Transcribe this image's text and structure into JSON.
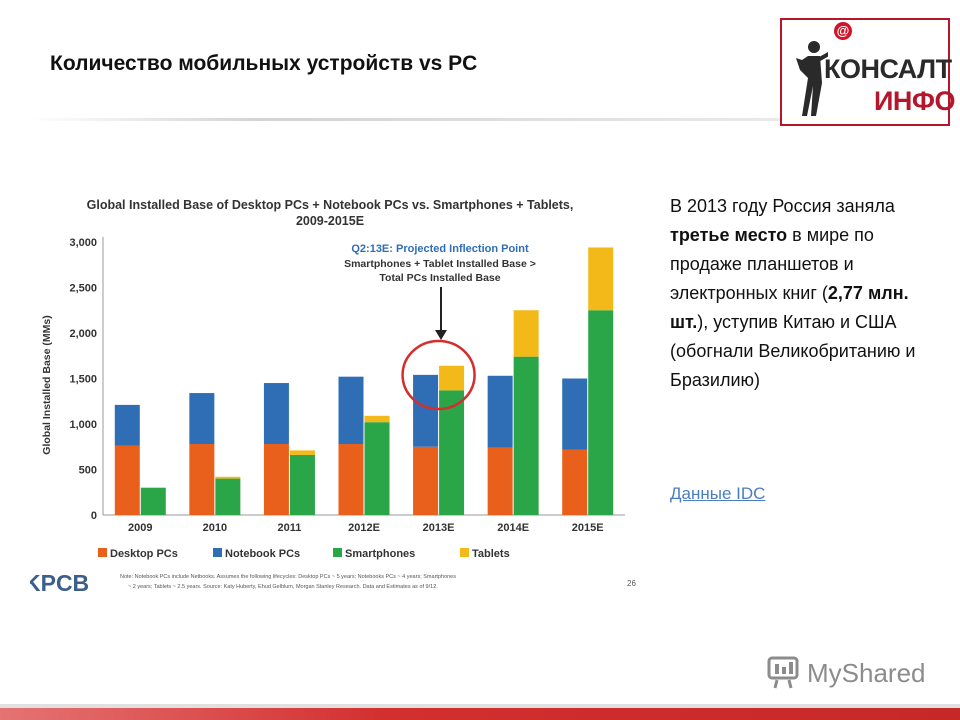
{
  "slide": {
    "title": "Количество мобильных устройств vs PC"
  },
  "logo": {
    "at_symbol": "@",
    "line1": "КОНСАЛТ",
    "line2": "ИНФО"
  },
  "chart_data": {
    "type": "bar",
    "stacked": "two-groups",
    "title_line1": "Global Installed Base of Desktop PCs + Notebook PCs vs. Smartphones + Tablets,",
    "title_line2": "2009-2015E",
    "ylabel": "Global Installed Base (MMs)",
    "ylim": [
      0,
      3000
    ],
    "yticks": [
      "0",
      "500",
      "1,000",
      "1,500",
      "2,000",
      "2,500",
      "3,000"
    ],
    "ytick_values": [
      0,
      500,
      1000,
      1500,
      2000,
      2500,
      3000
    ],
    "categories": [
      "2009",
      "2010",
      "2011",
      "2012E",
      "2013E",
      "2014E",
      "2015E"
    ],
    "pc_stack": [
      {
        "name": "Desktop PCs",
        "values": [
          760,
          780,
          780,
          780,
          750,
          740,
          720
        ]
      },
      {
        "name": "Notebook PCs",
        "values": [
          450,
          560,
          670,
          740,
          790,
          790,
          780
        ]
      }
    ],
    "mobile_stack": [
      {
        "name": "Smartphones",
        "values": [
          300,
          400,
          660,
          1020,
          1370,
          1740,
          2250
        ]
      },
      {
        "name": "Tablets",
        "values": [
          0,
          20,
          50,
          70,
          270,
          510,
          690
        ]
      }
    ],
    "colors": {
      "Desktop PCs": "#e8601c",
      "Notebook PCs": "#2f6eb5",
      "Smartphones": "#2aa548",
      "Tablets": "#f2b919"
    },
    "annotation": {
      "line1": "Q2:13E: Projected Inflection Point",
      "line2": "Smartphones + Tablet Installed Base >",
      "line3": "Total PCs Installed Base",
      "highlight_category": "2013E"
    },
    "legend_position": "bottom",
    "note_line1": "Note: Notebook PCs include Netbooks. Assumes the following lifecycles: Desktop PCs ~ 5 years; Notebooks PCs ~ 4 years; Smartphones",
    "note_line2": "~ 2 years; Tablets ~ 2.5 years. Source: Katy Huberty, Ehud Gelblum, Morgan Stanley Research. Data and Estimates as of 9/12.",
    "page_number": "26",
    "source_logo": "KPCB",
    "grid": false
  },
  "right_text": {
    "p1": "В 2013 году Россия заняла ",
    "p1_bold": "третье место",
    "p2": " в мире по продаже планшетов и электронных книг (",
    "p2_bold": "2,77 млн. шт.",
    "p3": "), уступив Китаю и США (обогнали Великобританию и Бразилию)"
  },
  "link": {
    "label": "Данные IDC"
  },
  "watermark": {
    "label": "MyShared"
  }
}
